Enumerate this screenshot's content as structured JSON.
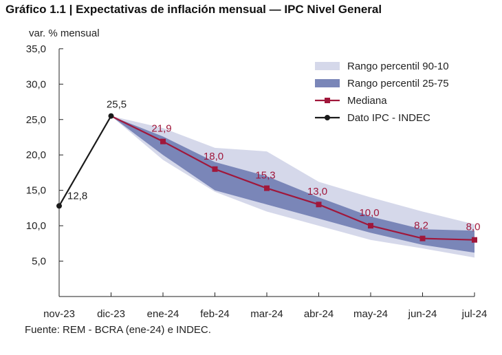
{
  "chart_data": {
    "type": "line",
    "title": "Gráfico 1.1 | Expectativas de inflación mensual — IPC Nivel General",
    "ylabel": "var. % mensual",
    "source": "Fuente: REM - BCRA (ene-24) e INDEC.",
    "categories": [
      "nov-23",
      "dic-23",
      "ene-24",
      "feb-24",
      "mar-24",
      "abr-24",
      "may-24",
      "jun-24",
      "jul-24"
    ],
    "ylim": [
      0,
      35
    ],
    "yticks": [
      5,
      10,
      15,
      20,
      25,
      30,
      35
    ],
    "ytick_labels": [
      "5,0",
      "10,0",
      "15,0",
      "20,0",
      "25,0",
      "30,0",
      "35,0"
    ],
    "grid": false,
    "legend_position": "top-right",
    "series": [
      {
        "name": "Rango percentil 90-10",
        "kind": "band",
        "color": "#d5d8ea",
        "lower": [
          null,
          25.5,
          19.3,
          14.8,
          12.0,
          10.0,
          8.0,
          6.8,
          5.5
        ],
        "upper": [
          null,
          25.5,
          23.8,
          21.0,
          20.5,
          16.2,
          14.0,
          12.0,
          10.2
        ]
      },
      {
        "name": "Rango percentil 25-75",
        "kind": "band",
        "color": "#7a86b8",
        "lower": [
          null,
          25.5,
          20.0,
          15.0,
          13.0,
          11.0,
          9.0,
          7.3,
          6.2
        ],
        "upper": [
          null,
          25.5,
          22.6,
          19.0,
          17.0,
          14.0,
          11.3,
          9.5,
          9.3
        ]
      },
      {
        "name": "Mediana",
        "kind": "line",
        "color": "#a0173b",
        "marker": "square",
        "values": [
          null,
          25.5,
          21.9,
          18.0,
          15.3,
          13.0,
          10.0,
          8.2,
          8.0
        ],
        "labels": [
          null,
          null,
          "21,9",
          "18,0",
          "15,3",
          "13,0",
          "10,0",
          "8,2",
          "8,0"
        ]
      },
      {
        "name": "Dato IPC - INDEC",
        "kind": "line",
        "color": "#1a1a1a",
        "marker": "circle",
        "values": [
          12.8,
          25.5,
          null,
          null,
          null,
          null,
          null,
          null,
          null
        ],
        "labels": [
          "12,8",
          "25,5",
          null,
          null,
          null,
          null,
          null,
          null,
          null
        ]
      }
    ]
  }
}
